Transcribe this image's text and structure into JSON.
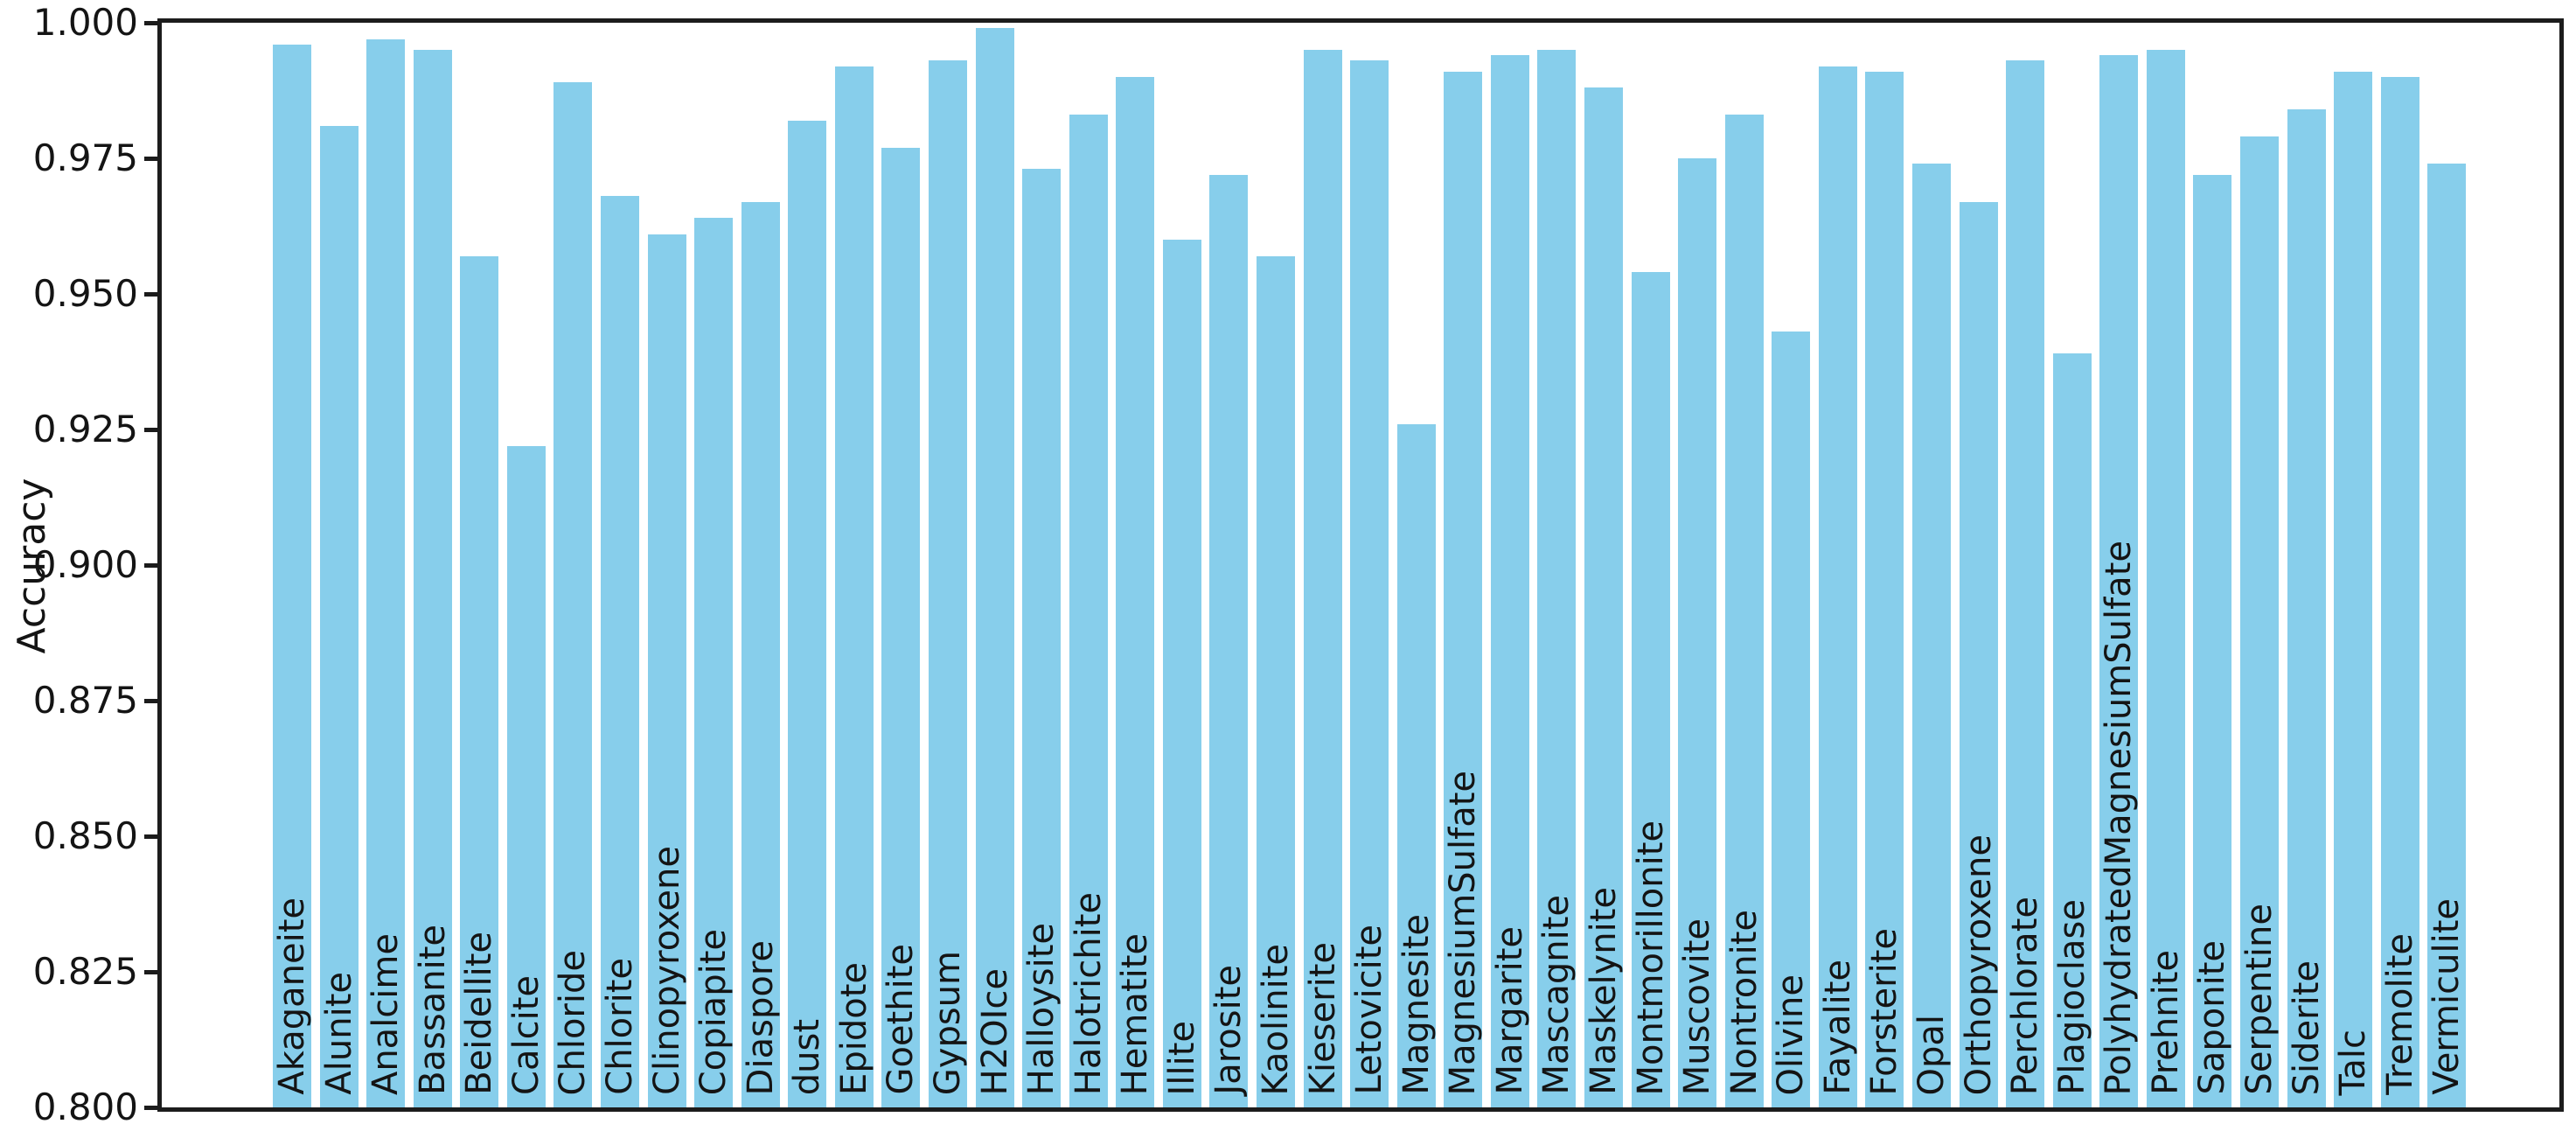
{
  "chart_data": {
    "type": "bar",
    "title": "",
    "xlabel": "",
    "ylabel": "Accuracy",
    "ylim": [
      0.8,
      1.0
    ],
    "ytick_step": 0.025,
    "ytick_labels": [
      "1.000",
      "0.975",
      "0.950",
      "0.925",
      "0.900",
      "0.875",
      "0.850",
      "0.825",
      "0.800"
    ],
    "grid": false,
    "legend_position": "none",
    "bar_color": "#87CEEB",
    "axis_color": "#1c1c1c",
    "text_color": "#141414",
    "categories": [
      "Akaganeite",
      "Alunite",
      "Analcime",
      "Bassanite",
      "Beidellite",
      "Calcite",
      "Chloride",
      "Chlorite",
      "Clinopyroxene",
      "Copiapite",
      "Diaspore",
      "dust",
      "Epidote",
      "Goethite",
      "Gypsum",
      "H2OIce",
      "Halloysite",
      "Halotrichite",
      "Hematite",
      "Illite",
      "Jarosite",
      "Kaolinite",
      "Kieserite",
      "Letovicite",
      "Magnesite",
      "MagnesiumSulfate",
      "Margarite",
      "Mascagnite",
      "Maskelynite",
      "Montmorillonite",
      "Muscovite",
      "Nontronite",
      "Olivine",
      "Fayalite",
      "Forsterite",
      "Opal",
      "Orthopyroxene",
      "Perchlorate",
      "Plagioclase",
      "PolyhydratedMagnesiumSulfate",
      "Prehnite",
      "Saponite",
      "Serpentine",
      "Siderite",
      "Talc",
      "Tremolite",
      "Vermiculite"
    ],
    "values": [
      0.996,
      0.981,
      0.997,
      0.995,
      0.957,
      0.922,
      0.989,
      0.968,
      0.961,
      0.964,
      0.967,
      0.982,
      0.992,
      0.977,
      0.993,
      0.999,
      0.973,
      0.983,
      0.99,
      0.96,
      0.972,
      0.957,
      0.995,
      0.993,
      0.926,
      0.991,
      0.994,
      0.995,
      0.988,
      0.954,
      0.975,
      0.983,
      0.943,
      0.992,
      0.991,
      0.974,
      0.967,
      0.993,
      0.939,
      0.994,
      0.995,
      0.972,
      0.979,
      0.984,
      0.991,
      0.99,
      0.974
    ]
  }
}
